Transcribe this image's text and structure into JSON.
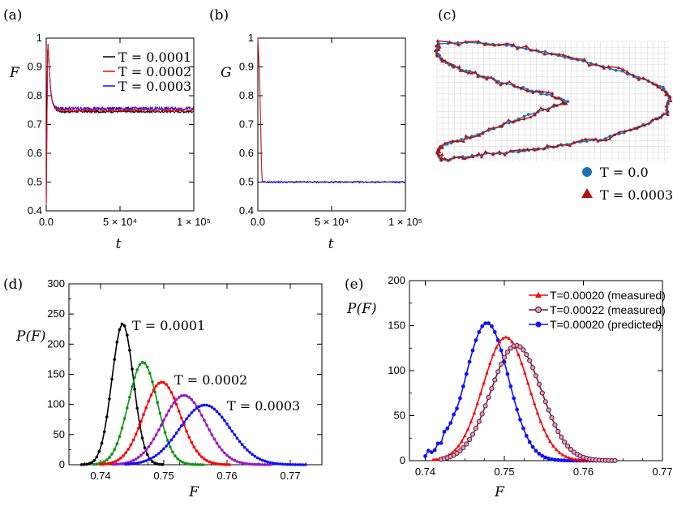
{
  "colors": {
    "black": "#000000",
    "red": "#ff0000",
    "blue": "#1010ff",
    "green": "#109410",
    "purple": "#9a16c4",
    "maroon": "#6b1a3a",
    "dot_blue": "#1f6fb5",
    "tri_red": "#b01010",
    "grid": "#d8d8d8"
  },
  "chart_data": [
    {
      "panel": "(a)",
      "type": "line",
      "ylabel": "F",
      "xlabel": "t",
      "xlim": [
        0,
        100000
      ],
      "ylim": [
        0.4,
        1
      ],
      "xticks": [
        "0.0",
        "5 × 10⁴",
        "1 × 10⁵"
      ],
      "yticks": [
        "0.4",
        "0.5",
        "0.6",
        "0.7",
        "0.8",
        "0.9",
        "1"
      ],
      "legend_position": "top-right",
      "series": [
        {
          "name": "T = 0.0001",
          "color": "#000000",
          "x": [
            0,
            1000,
            2000,
            3000,
            4000,
            5000,
            6000,
            8000,
            10000,
            100000
          ],
          "y": [
            0.42,
            1.0,
            0.9,
            0.82,
            0.78,
            0.765,
            0.755,
            0.748,
            0.745,
            0.745
          ]
        },
        {
          "name": "T = 0.0002",
          "color": "#ff0000",
          "x": [
            0,
            1000,
            2000,
            3000,
            4000,
            5000,
            6000,
            8000,
            10000,
            100000
          ],
          "y": [
            0.42,
            1.0,
            0.9,
            0.82,
            0.78,
            0.765,
            0.758,
            0.752,
            0.75,
            0.75
          ]
        },
        {
          "name": "T = 0.0003",
          "color": "#1010ff",
          "x": [
            0,
            1000,
            2000,
            3000,
            4000,
            5000,
            6000,
            8000,
            10000,
            100000
          ],
          "y": [
            0.42,
            1.0,
            0.9,
            0.82,
            0.785,
            0.77,
            0.762,
            0.757,
            0.756,
            0.756
          ]
        }
      ]
    },
    {
      "panel": "(b)",
      "type": "line",
      "ylabel": "G",
      "xlabel": "t",
      "xlim": [
        0,
        100000
      ],
      "ylim": [
        0.4,
        1
      ],
      "xticks": [
        "0.0",
        "5 × 10⁴",
        "1 × 10⁵"
      ],
      "yticks": [
        "0.4",
        "0.5",
        "0.6",
        "0.7",
        "0.8",
        "0.9",
        "1"
      ],
      "series": [
        {
          "name": "",
          "color": "#1010ff",
          "x": [
            0,
            500,
            1500,
            2500,
            3000,
            100000
          ],
          "y": [
            1.0,
            0.95,
            0.8,
            0.55,
            0.5,
            0.5
          ]
        }
      ]
    },
    {
      "panel": "(c)",
      "type": "scatter",
      "legend_position": "bottom-right",
      "series": [
        {
          "name": "T = 0.0",
          "marker": "circle",
          "color": "#1f6fb5"
        },
        {
          "name": "T = 0.0003",
          "marker": "triangle",
          "color": "#b01010"
        }
      ]
    },
    {
      "panel": "(d)",
      "type": "line",
      "ylabel": "P(F)",
      "xlabel": "F",
      "xlim": [
        0.735,
        0.775
      ],
      "ylim": [
        0,
        300
      ],
      "xticks": [
        "0.74",
        "0.75",
        "0.76",
        "0.77"
      ],
      "yticks": [
        "0",
        "50",
        "100",
        "150",
        "200",
        "250",
        "300"
      ],
      "annotations": [
        "T = 0.0001",
        "T = 0.0002",
        "T = 0.0003"
      ],
      "series": [
        {
          "name": "",
          "color": "#000000",
          "mean": 0.7435,
          "sd": 0.0017,
          "peak": 234,
          "xrange": [
            0.737,
            0.75
          ]
        },
        {
          "name": "",
          "color": "#109410",
          "mean": 0.7467,
          "sd": 0.0023,
          "peak": 170,
          "xrange": [
            0.739,
            0.7565
          ]
        },
        {
          "name": "",
          "color": "#ff0000",
          "mean": 0.7497,
          "sd": 0.0029,
          "peak": 137,
          "xrange": [
            0.74,
            0.7605
          ]
        },
        {
          "name": "",
          "color": "#9a16c4",
          "mean": 0.7532,
          "sd": 0.0034,
          "peak": 115,
          "xrange": [
            0.742,
            0.767
          ]
        },
        {
          "name": "",
          "color": "#1010ff",
          "mean": 0.7565,
          "sd": 0.004,
          "peak": 99,
          "xrange": [
            0.744,
            0.7725
          ]
        }
      ]
    },
    {
      "panel": "(e)",
      "type": "line",
      "ylabel": "P(F)",
      "xlabel": "F",
      "xlim": [
        0.738,
        0.77
      ],
      "ylim": [
        0,
        200
      ],
      "xticks": [
        "0.74",
        "0.75",
        "0.76",
        "0.77"
      ],
      "yticks": [
        "0",
        "50",
        "100",
        "150",
        "200"
      ],
      "legend_position": "top-right",
      "series": [
        {
          "name": "T=0.00020 (measured)",
          "color": "#ff0000",
          "marker": "triangle",
          "mean": 0.7502,
          "sd": 0.0029,
          "peak": 137,
          "xrange": [
            0.741,
            0.764
          ]
        },
        {
          "name": "T=0.00022 (measured)",
          "color": "#6b1a3a",
          "marker": "circle-open",
          "mean": 0.7515,
          "sd": 0.0032,
          "peak": 128,
          "xrange": [
            0.742,
            0.764
          ]
        },
        {
          "name": "T=0.00020 (predicted)",
          "color": "#1010ff",
          "marker": "circle",
          "mean": 0.7478,
          "sd": 0.0027,
          "peak": 153,
          "xrange": [
            0.74,
            0.764
          ]
        }
      ]
    }
  ],
  "labels": {
    "a": "(a)",
    "b": "(b)",
    "c": "(c)",
    "d": "(d)",
    "e": "(e)"
  }
}
